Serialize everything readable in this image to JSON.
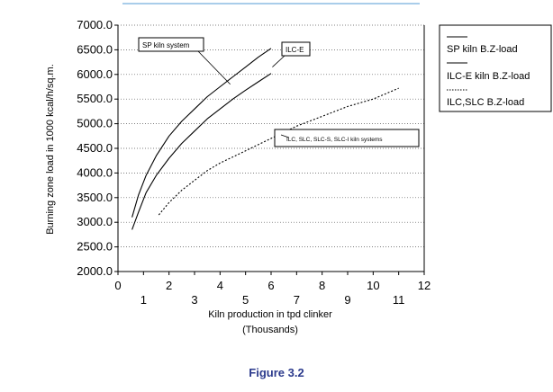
{
  "caption": "Figure 3.2",
  "chart_data": {
    "type": "line",
    "xlabel": "Kiln production in tpd clinker",
    "xunit": "(Thousands)",
    "ylabel": "Burning zone load in 1000 kcal/h/sq.m.",
    "xlim": [
      0,
      12
    ],
    "ylim": [
      2000,
      7000
    ],
    "x_ticks": [
      0,
      1,
      2,
      3,
      4,
      5,
      6,
      7,
      8,
      9,
      10,
      11,
      12
    ],
    "x_tick_labels": [
      "0",
      "1",
      "2",
      "3",
      "4",
      "5",
      "6",
      "7",
      "8",
      "9",
      "10",
      "11",
      "12"
    ],
    "y_ticks": [
      2000,
      2500,
      3000,
      3500,
      4000,
      4500,
      5000,
      5500,
      6000,
      6500,
      7000
    ],
    "y_tick_labels": [
      "2000.0",
      "2500.0",
      "3000.0",
      "3500.0",
      "4000.0",
      "4500.0",
      "5000.0",
      "5500.0",
      "6000.0",
      "6500.0",
      "7000.0"
    ],
    "grid": "horizontal-dotted",
    "legend_position": "right",
    "series": [
      {
        "name": "SP kiln B.Z-load",
        "style": "solid",
        "points": [
          [
            0.55,
            3100
          ],
          [
            0.8,
            3550
          ],
          [
            1.1,
            3950
          ],
          [
            1.5,
            4350
          ],
          [
            2,
            4750
          ],
          [
            2.5,
            5050
          ],
          [
            3,
            5300
          ],
          [
            3.5,
            5550
          ],
          [
            4,
            5750
          ],
          [
            4.5,
            5950
          ],
          [
            5,
            6150
          ],
          [
            5.5,
            6350
          ],
          [
            6,
            6530
          ]
        ]
      },
      {
        "name": "ILC-E kiln B.Z-load",
        "style": "solid",
        "points": [
          [
            0.55,
            2850
          ],
          [
            0.8,
            3200
          ],
          [
            1.1,
            3600
          ],
          [
            1.5,
            3950
          ],
          [
            2,
            4300
          ],
          [
            2.5,
            4600
          ],
          [
            3,
            4850
          ],
          [
            3.5,
            5100
          ],
          [
            4,
            5300
          ],
          [
            4.5,
            5500
          ],
          [
            5,
            5680
          ],
          [
            5.5,
            5850
          ],
          [
            6,
            6020
          ]
        ]
      },
      {
        "name": "ILC,SLC B.Z-load",
        "style": "dotted",
        "points": [
          [
            1.6,
            3150
          ],
          [
            2,
            3400
          ],
          [
            2.5,
            3650
          ],
          [
            3,
            3850
          ],
          [
            3.5,
            4050
          ],
          [
            4,
            4200
          ],
          [
            5,
            4450
          ],
          [
            6,
            4700
          ],
          [
            7,
            4950
          ],
          [
            8,
            5150
          ],
          [
            9,
            5350
          ],
          [
            10,
            5500
          ],
          [
            11,
            5720
          ]
        ]
      }
    ],
    "callouts": [
      {
        "label": "SP kiln system",
        "target": [
          4.4,
          5800
        ]
      },
      {
        "label": "ILC-E",
        "target": [
          6.05,
          6150
        ]
      },
      {
        "label": "ILC, SLC, SLC-S, SLC-I kiln systems",
        "target": [
          6.7,
          4720
        ]
      }
    ]
  }
}
